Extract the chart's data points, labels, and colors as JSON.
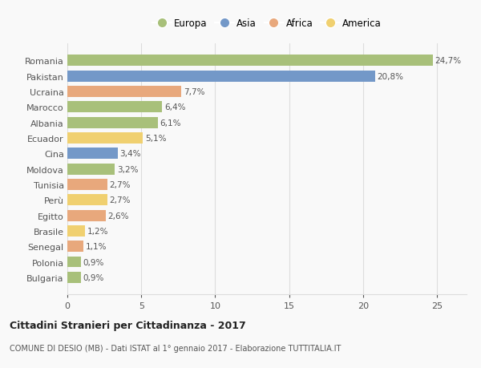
{
  "countries": [
    "Romania",
    "Pakistan",
    "Ucraina",
    "Marocco",
    "Albania",
    "Ecuador",
    "Cina",
    "Moldova",
    "Tunisia",
    "Perù",
    "Egitto",
    "Brasile",
    "Senegal",
    "Polonia",
    "Bulgaria"
  ],
  "values": [
    24.7,
    20.8,
    7.7,
    6.4,
    6.1,
    5.1,
    3.4,
    3.2,
    2.7,
    2.7,
    2.6,
    1.2,
    1.1,
    0.9,
    0.9
  ],
  "labels": [
    "24,7%",
    "20,8%",
    "7,7%",
    "6,4%",
    "6,1%",
    "5,1%",
    "3,4%",
    "3,2%",
    "2,7%",
    "2,7%",
    "2,6%",
    "1,2%",
    "1,1%",
    "0,9%",
    "0,9%"
  ],
  "colors": [
    "#a8c07a",
    "#7398c8",
    "#e8a87c",
    "#a8c07a",
    "#a8c07a",
    "#f0d070",
    "#7398c8",
    "#a8c07a",
    "#e8a87c",
    "#f0d070",
    "#e8a87c",
    "#f0d070",
    "#e8a87c",
    "#a8c07a",
    "#a8c07a"
  ],
  "legend_labels": [
    "Europa",
    "Asia",
    "Africa",
    "America"
  ],
  "legend_colors": [
    "#a8c07a",
    "#7398c8",
    "#e8a87c",
    "#f0d070"
  ],
  "title": "Cittadini Stranieri per Cittadinanza - 2017",
  "subtitle": "COMUNE DI DESIO (MB) - Dati ISTAT al 1° gennaio 2017 - Elaborazione TUTTITALIA.IT",
  "xlim": [
    0,
    27
  ],
  "xticks": [
    0,
    5,
    10,
    15,
    20,
    25
  ],
  "background_color": "#f9f9f9",
  "grid_color": "#dddddd",
  "bar_height": 0.72
}
